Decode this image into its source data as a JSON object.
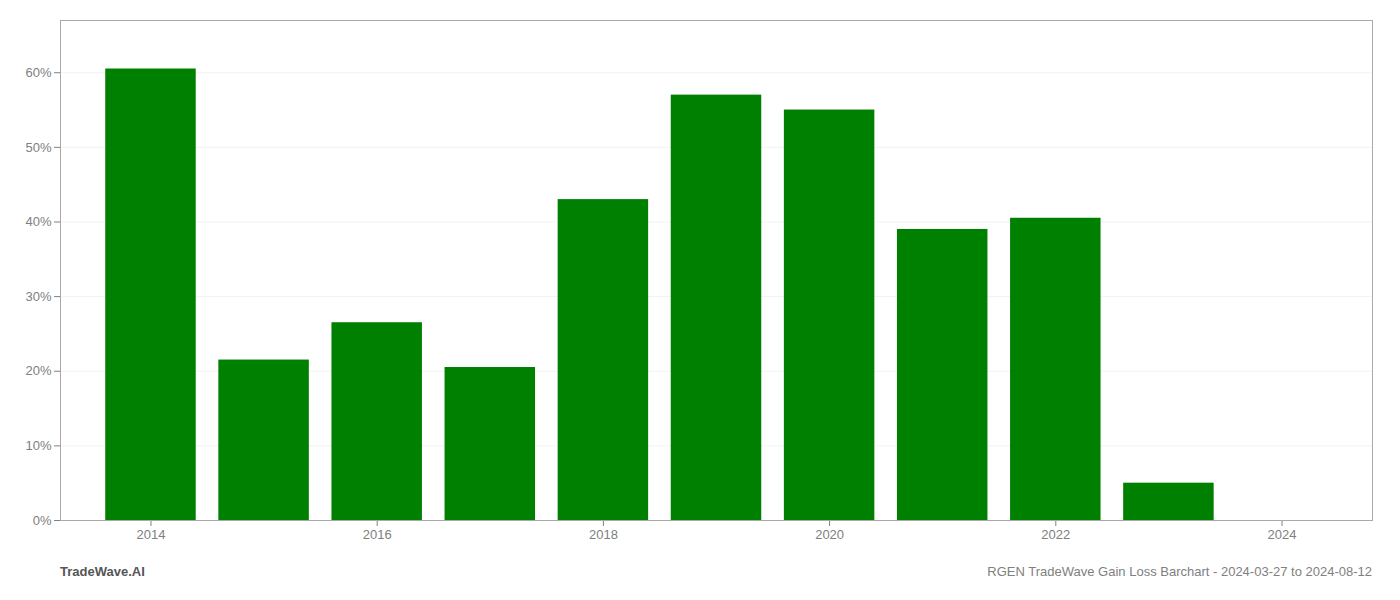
{
  "chart_data": {
    "type": "bar",
    "x": [
      2014,
      2015,
      2016,
      2017,
      2018,
      2019,
      2020,
      2021,
      2022,
      2023
    ],
    "values": [
      60.5,
      21.5,
      26.5,
      20.5,
      43.0,
      57.0,
      55.0,
      39.0,
      40.5,
      5.0
    ],
    "color": "#008000",
    "xlim": [
      2013.2,
      2024.8
    ],
    "xticks": [
      2014,
      2016,
      2018,
      2020,
      2022,
      2024
    ],
    "ylim": [
      0,
      67
    ],
    "yticks": [
      {
        "value": 0,
        "label": "0%"
      },
      {
        "value": 10,
        "label": "10%"
      },
      {
        "value": 20,
        "label": "20%"
      },
      {
        "value": 30,
        "label": "30%"
      },
      {
        "value": 40,
        "label": "40%"
      },
      {
        "value": 50,
        "label": "50%"
      },
      {
        "value": 60,
        "label": "60%"
      }
    ],
    "grid": true,
    "annotations": [
      "TradeWave.AI",
      "RGEN TradeWave Gain Loss Barchart - 2024-03-27 to 2024-08-12"
    ]
  }
}
